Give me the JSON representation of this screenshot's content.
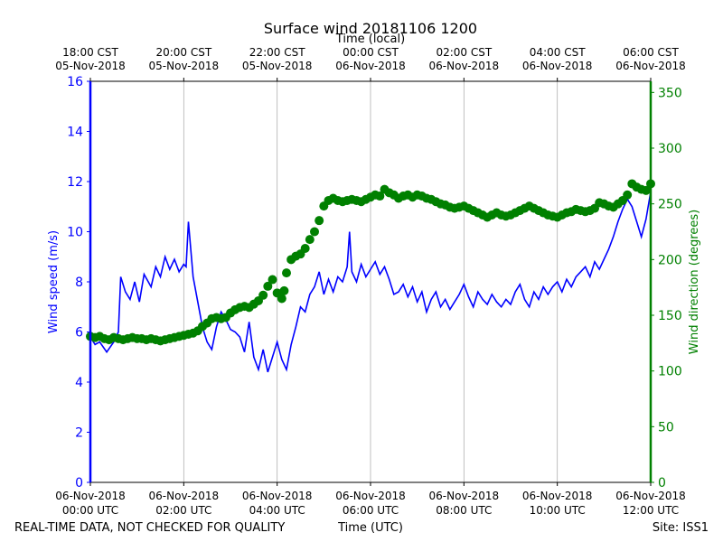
{
  "chart_data": {
    "type": "line",
    "title": "Surface wind 20181106 1200",
    "top_axis_label": "Time (local)",
    "xlabel": "Time (UTC)",
    "ylabel_left": "Wind speed (m/s)",
    "ylabel_right": "Wind direction (degrees)",
    "footer_left": "REAL-TIME DATA, NOT CHECKED FOR QUALITY",
    "footer_right": "Site: ISS1",
    "x_range_hours_utc": [
      0,
      12
    ],
    "ylim_left": [
      0,
      16
    ],
    "ylim_right": [
      0,
      360
    ],
    "left_ticks": [
      0,
      2,
      4,
      6,
      8,
      10,
      12,
      14,
      16
    ],
    "right_ticks": [
      0,
      50,
      100,
      150,
      200,
      250,
      300,
      350
    ],
    "bottom_ticks": [
      {
        "hour": 0,
        "line1": "06-Nov-2018",
        "line2": "00:00 UTC"
      },
      {
        "hour": 2,
        "line1": "06-Nov-2018",
        "line2": "02:00 UTC"
      },
      {
        "hour": 4,
        "line1": "06-Nov-2018",
        "line2": "04:00 UTC"
      },
      {
        "hour": 6,
        "line1": "06-Nov-2018",
        "line2": "06:00 UTC"
      },
      {
        "hour": 8,
        "line1": "06-Nov-2018",
        "line2": "08:00 UTC"
      },
      {
        "hour": 10,
        "line1": "06-Nov-2018",
        "line2": "10:00 UTC"
      },
      {
        "hour": 12,
        "line1": "06-Nov-2018",
        "line2": "12:00 UTC"
      }
    ],
    "top_ticks": [
      {
        "hour": 0,
        "line1": "18:00 CST",
        "line2": "05-Nov-2018"
      },
      {
        "hour": 2,
        "line1": "20:00 CST",
        "line2": "05-Nov-2018"
      },
      {
        "hour": 4,
        "line1": "22:00 CST",
        "line2": "05-Nov-2018"
      },
      {
        "hour": 6,
        "line1": "00:00 CST",
        "line2": "06-Nov-2018"
      },
      {
        "hour": 8,
        "line1": "02:00 CST",
        "line2": "06-Nov-2018"
      },
      {
        "hour": 10,
        "line1": "04:00 CST",
        "line2": "06-Nov-2018"
      },
      {
        "hour": 12,
        "line1": "06:00 CST",
        "line2": "06-Nov-2018"
      }
    ],
    "series": [
      {
        "name": "Wind speed (m/s)",
        "axis": "left",
        "style": "line",
        "color": "#0000ff",
        "points": [
          [
            0.0,
            5.8
          ],
          [
            0.1,
            5.5
          ],
          [
            0.2,
            5.6
          ],
          [
            0.35,
            5.2
          ],
          [
            0.5,
            5.6
          ],
          [
            0.6,
            6.0
          ],
          [
            0.65,
            8.2
          ],
          [
            0.75,
            7.6
          ],
          [
            0.85,
            7.3
          ],
          [
            0.95,
            8.0
          ],
          [
            1.05,
            7.2
          ],
          [
            1.15,
            8.3
          ],
          [
            1.3,
            7.8
          ],
          [
            1.4,
            8.6
          ],
          [
            1.5,
            8.2
          ],
          [
            1.6,
            9.0
          ],
          [
            1.7,
            8.5
          ],
          [
            1.8,
            8.9
          ],
          [
            1.9,
            8.4
          ],
          [
            2.0,
            8.7
          ],
          [
            2.05,
            8.6
          ],
          [
            2.1,
            10.4
          ],
          [
            2.2,
            8.2
          ],
          [
            2.3,
            7.2
          ],
          [
            2.4,
            6.2
          ],
          [
            2.5,
            5.6
          ],
          [
            2.6,
            5.3
          ],
          [
            2.7,
            6.2
          ],
          [
            2.8,
            6.8
          ],
          [
            2.9,
            6.5
          ],
          [
            3.0,
            6.1
          ],
          [
            3.1,
            6.0
          ],
          [
            3.2,
            5.8
          ],
          [
            3.3,
            5.2
          ],
          [
            3.4,
            6.4
          ],
          [
            3.5,
            5.0
          ],
          [
            3.6,
            4.5
          ],
          [
            3.7,
            5.3
          ],
          [
            3.8,
            4.4
          ],
          [
            3.9,
            5.0
          ],
          [
            4.0,
            5.6
          ],
          [
            4.1,
            4.9
          ],
          [
            4.2,
            4.5
          ],
          [
            4.3,
            5.5
          ],
          [
            4.4,
            6.2
          ],
          [
            4.5,
            7.0
          ],
          [
            4.6,
            6.8
          ],
          [
            4.7,
            7.5
          ],
          [
            4.8,
            7.8
          ],
          [
            4.9,
            8.4
          ],
          [
            5.0,
            7.5
          ],
          [
            5.1,
            8.1
          ],
          [
            5.2,
            7.6
          ],
          [
            5.3,
            8.2
          ],
          [
            5.4,
            8.0
          ],
          [
            5.5,
            8.6
          ],
          [
            5.55,
            10.0
          ],
          [
            5.6,
            8.4
          ],
          [
            5.7,
            8.0
          ],
          [
            5.8,
            8.7
          ],
          [
            5.9,
            8.2
          ],
          [
            6.0,
            8.5
          ],
          [
            6.1,
            8.8
          ],
          [
            6.2,
            8.3
          ],
          [
            6.3,
            8.6
          ],
          [
            6.4,
            8.1
          ],
          [
            6.5,
            7.5
          ],
          [
            6.6,
            7.6
          ],
          [
            6.7,
            7.9
          ],
          [
            6.8,
            7.4
          ],
          [
            6.9,
            7.8
          ],
          [
            7.0,
            7.2
          ],
          [
            7.1,
            7.6
          ],
          [
            7.2,
            6.8
          ],
          [
            7.3,
            7.3
          ],
          [
            7.4,
            7.6
          ],
          [
            7.5,
            7.0
          ],
          [
            7.6,
            7.3
          ],
          [
            7.7,
            6.9
          ],
          [
            7.8,
            7.2
          ],
          [
            7.9,
            7.5
          ],
          [
            8.0,
            7.9
          ],
          [
            8.1,
            7.4
          ],
          [
            8.2,
            7.0
          ],
          [
            8.3,
            7.6
          ],
          [
            8.4,
            7.3
          ],
          [
            8.5,
            7.1
          ],
          [
            8.6,
            7.5
          ],
          [
            8.7,
            7.2
          ],
          [
            8.8,
            7.0
          ],
          [
            8.9,
            7.3
          ],
          [
            9.0,
            7.1
          ],
          [
            9.1,
            7.6
          ],
          [
            9.2,
            7.9
          ],
          [
            9.3,
            7.3
          ],
          [
            9.4,
            7.0
          ],
          [
            9.5,
            7.6
          ],
          [
            9.6,
            7.3
          ],
          [
            9.7,
            7.8
          ],
          [
            9.8,
            7.5
          ],
          [
            9.9,
            7.8
          ],
          [
            10.0,
            8.0
          ],
          [
            10.1,
            7.6
          ],
          [
            10.2,
            8.1
          ],
          [
            10.3,
            7.8
          ],
          [
            10.4,
            8.2
          ],
          [
            10.5,
            8.4
          ],
          [
            10.6,
            8.6
          ],
          [
            10.7,
            8.2
          ],
          [
            10.8,
            8.8
          ],
          [
            10.9,
            8.5
          ],
          [
            11.0,
            8.9
          ],
          [
            11.1,
            9.3
          ],
          [
            11.2,
            9.8
          ],
          [
            11.3,
            10.4
          ],
          [
            11.4,
            10.9
          ],
          [
            11.5,
            11.3
          ],
          [
            11.6,
            11.0
          ],
          [
            11.7,
            10.4
          ],
          [
            11.8,
            9.8
          ],
          [
            11.9,
            10.5
          ],
          [
            12.0,
            11.6
          ]
        ]
      },
      {
        "name": "Wind direction (degrees)",
        "axis": "right",
        "style": "markers",
        "color": "#008000",
        "points": [
          [
            0.0,
            131
          ],
          [
            0.1,
            130
          ],
          [
            0.2,
            131
          ],
          [
            0.3,
            129
          ],
          [
            0.4,
            128
          ],
          [
            0.5,
            130
          ],
          [
            0.6,
            129
          ],
          [
            0.7,
            128
          ],
          [
            0.8,
            129
          ],
          [
            0.9,
            130
          ],
          [
            1.0,
            129
          ],
          [
            1.1,
            129
          ],
          [
            1.2,
            128
          ],
          [
            1.3,
            129
          ],
          [
            1.4,
            128
          ],
          [
            1.5,
            127
          ],
          [
            1.6,
            128
          ],
          [
            1.7,
            129
          ],
          [
            1.8,
            130
          ],
          [
            1.9,
            131
          ],
          [
            2.0,
            132
          ],
          [
            2.1,
            133
          ],
          [
            2.2,
            134
          ],
          [
            2.3,
            136
          ],
          [
            2.4,
            140
          ],
          [
            2.5,
            143
          ],
          [
            2.6,
            147
          ],
          [
            2.7,
            148
          ],
          [
            2.8,
            147
          ],
          [
            2.9,
            148
          ],
          [
            3.0,
            152
          ],
          [
            3.1,
            155
          ],
          [
            3.2,
            157
          ],
          [
            3.3,
            158
          ],
          [
            3.4,
            157
          ],
          [
            3.5,
            160
          ],
          [
            3.6,
            163
          ],
          [
            3.7,
            168
          ],
          [
            3.8,
            176
          ],
          [
            3.9,
            182
          ],
          [
            4.0,
            170
          ],
          [
            4.1,
            165
          ],
          [
            4.15,
            172
          ],
          [
            4.2,
            188
          ],
          [
            4.3,
            200
          ],
          [
            4.4,
            203
          ],
          [
            4.5,
            205
          ],
          [
            4.6,
            210
          ],
          [
            4.7,
            218
          ],
          [
            4.8,
            225
          ],
          [
            4.9,
            235
          ],
          [
            5.0,
            248
          ],
          [
            5.1,
            253
          ],
          [
            5.2,
            255
          ],
          [
            5.3,
            253
          ],
          [
            5.4,
            252
          ],
          [
            5.5,
            253
          ],
          [
            5.6,
            254
          ],
          [
            5.7,
            253
          ],
          [
            5.8,
            252
          ],
          [
            5.9,
            254
          ],
          [
            6.0,
            256
          ],
          [
            6.1,
            258
          ],
          [
            6.2,
            257
          ],
          [
            6.3,
            263
          ],
          [
            6.4,
            260
          ],
          [
            6.5,
            258
          ],
          [
            6.6,
            255
          ],
          [
            6.7,
            257
          ],
          [
            6.8,
            258
          ],
          [
            6.9,
            256
          ],
          [
            7.0,
            258
          ],
          [
            7.1,
            257
          ],
          [
            7.2,
            255
          ],
          [
            7.3,
            254
          ],
          [
            7.4,
            252
          ],
          [
            7.5,
            250
          ],
          [
            7.6,
            249
          ],
          [
            7.7,
            247
          ],
          [
            7.8,
            246
          ],
          [
            7.9,
            247
          ],
          [
            8.0,
            248
          ],
          [
            8.1,
            246
          ],
          [
            8.2,
            244
          ],
          [
            8.3,
            242
          ],
          [
            8.4,
            240
          ],
          [
            8.5,
            238
          ],
          [
            8.6,
            240
          ],
          [
            8.7,
            242
          ],
          [
            8.8,
            240
          ],
          [
            8.9,
            239
          ],
          [
            9.0,
            240
          ],
          [
            9.1,
            242
          ],
          [
            9.2,
            244
          ],
          [
            9.3,
            246
          ],
          [
            9.4,
            248
          ],
          [
            9.5,
            246
          ],
          [
            9.6,
            244
          ],
          [
            9.7,
            242
          ],
          [
            9.8,
            240
          ],
          [
            9.9,
            239
          ],
          [
            10.0,
            238
          ],
          [
            10.1,
            240
          ],
          [
            10.2,
            242
          ],
          [
            10.3,
            243
          ],
          [
            10.4,
            245
          ],
          [
            10.5,
            244
          ],
          [
            10.6,
            243
          ],
          [
            10.7,
            244
          ],
          [
            10.8,
            246
          ],
          [
            10.9,
            251
          ],
          [
            11.0,
            250
          ],
          [
            11.1,
            248
          ],
          [
            11.2,
            247
          ],
          [
            11.3,
            250
          ],
          [
            11.4,
            253
          ],
          [
            11.5,
            258
          ],
          [
            11.6,
            268
          ],
          [
            11.7,
            265
          ],
          [
            11.8,
            263
          ],
          [
            11.9,
            262
          ],
          [
            12.0,
            268
          ]
        ]
      }
    ]
  }
}
